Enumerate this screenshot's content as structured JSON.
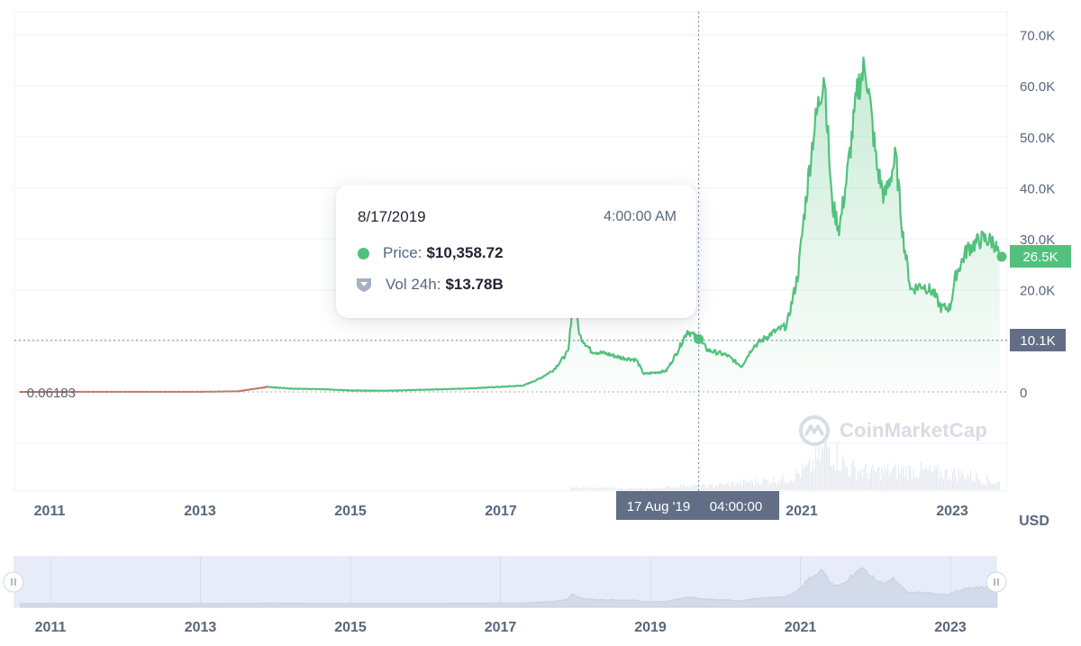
{
  "chart_data": {
    "type": "area",
    "x_ticks": [
      "2011",
      "2013",
      "2015",
      "2017",
      "2019",
      "2021",
      "2023"
    ],
    "y_ticks": [
      "70.0K",
      "60.0K",
      "50.0K",
      "40.0K",
      "30.0K",
      "20.0K",
      "0"
    ],
    "currency": "USD",
    "ylim": [
      0,
      75000
    ],
    "series": [
      {
        "values_by_year": [
          [
            2010.6,
            0.06
          ],
          [
            2011.5,
            14
          ],
          [
            2012.5,
            10
          ],
          [
            2013.0,
            20
          ],
          [
            2013.5,
            110
          ],
          [
            2013.9,
            1000
          ],
          [
            2014.2,
            650
          ],
          [
            2014.6,
            550
          ],
          [
            2015.0,
            280
          ],
          [
            2015.5,
            240
          ],
          [
            2016.0,
            430
          ],
          [
            2016.5,
            650
          ],
          [
            2017.0,
            1000
          ],
          [
            2017.3,
            1250
          ],
          [
            2017.5,
            2500
          ],
          [
            2017.7,
            4300
          ],
          [
            2017.9,
            8000
          ],
          [
            2017.96,
            19000
          ],
          [
            2018.05,
            11000
          ],
          [
            2018.2,
            8000
          ],
          [
            2018.4,
            7500
          ],
          [
            2018.6,
            6700
          ],
          [
            2018.8,
            6300
          ],
          [
            2018.9,
            3500
          ],
          [
            2019.0,
            3700
          ],
          [
            2019.2,
            4100
          ],
          [
            2019.35,
            8000
          ],
          [
            2019.48,
            12000
          ],
          [
            2019.63,
            10358.72
          ],
          [
            2019.75,
            8200
          ],
          [
            2020.0,
            7200
          ],
          [
            2020.2,
            5000
          ],
          [
            2020.35,
            8800
          ],
          [
            2020.6,
            11500
          ],
          [
            2020.8,
            13000
          ],
          [
            2020.95,
            23000
          ],
          [
            2021.02,
            33000
          ],
          [
            2021.15,
            50000
          ],
          [
            2021.3,
            63000
          ],
          [
            2021.4,
            37000
          ],
          [
            2021.5,
            32000
          ],
          [
            2021.6,
            42000
          ],
          [
            2021.75,
            60000
          ],
          [
            2021.85,
            64000
          ],
          [
            2022.0,
            44000
          ],
          [
            2022.1,
            38000
          ],
          [
            2022.25,
            46000
          ],
          [
            2022.35,
            30000
          ],
          [
            2022.45,
            20000
          ],
          [
            2022.6,
            21000
          ],
          [
            2022.75,
            19500
          ],
          [
            2022.85,
            16500
          ],
          [
            2022.97,
            16500
          ],
          [
            2023.05,
            23000
          ],
          [
            2023.2,
            28000
          ],
          [
            2023.4,
            30000
          ],
          [
            2023.55,
            29500
          ],
          [
            2023.63,
            26500
          ]
        ]
      }
    ],
    "volume_by_year": [
      [
        2017.9,
        0.06
      ],
      [
        2018.3,
        0.04
      ],
      [
        2019.0,
        0.03
      ],
      [
        2019.5,
        0.1
      ],
      [
        2019.75,
        0.08
      ],
      [
        2020.2,
        0.15
      ],
      [
        2020.8,
        0.22
      ],
      [
        2021.1,
        0.45
      ],
      [
        2021.35,
        0.9
      ],
      [
        2021.6,
        0.45
      ],
      [
        2021.9,
        0.35
      ],
      [
        2022.4,
        0.4
      ],
      [
        2022.8,
        0.35
      ],
      [
        2023.2,
        0.3
      ],
      [
        2023.6,
        0.15
      ]
    ],
    "reference_lines": [
      {
        "label": "0.06183",
        "value": 0.06183
      },
      {
        "label": "10.1K",
        "value": 10100
      }
    ],
    "current_price_label": "26.5K",
    "crosshair_label": {
      "date": "17 Aug '19",
      "time": "04:00:00"
    },
    "navigator_ticks": [
      "2011",
      "2013",
      "2015",
      "2017",
      "2019",
      "2021",
      "2023"
    ]
  },
  "tooltip": {
    "date": "8/17/2019",
    "time": "4:00:00 AM",
    "price_label": "Price:",
    "price_value": "$10,358.72",
    "volume_label": "Vol 24h:",
    "volume_value": "$13.78B"
  },
  "watermark": "CoinMarketCap",
  "colors": {
    "line": "#16c784",
    "line_soft": "#52c17d",
    "fill": "#d9f2e3",
    "grid": "#eff2f5",
    "axis_text": "#58667e",
    "badge_green": "#52c17d",
    "badge_grey": "#616e85",
    "crosshair": "#6f87a8",
    "navigator_bg": "#e7ecf8",
    "navigator_area": "#d3dbea",
    "early_line": "#c0705a"
  }
}
